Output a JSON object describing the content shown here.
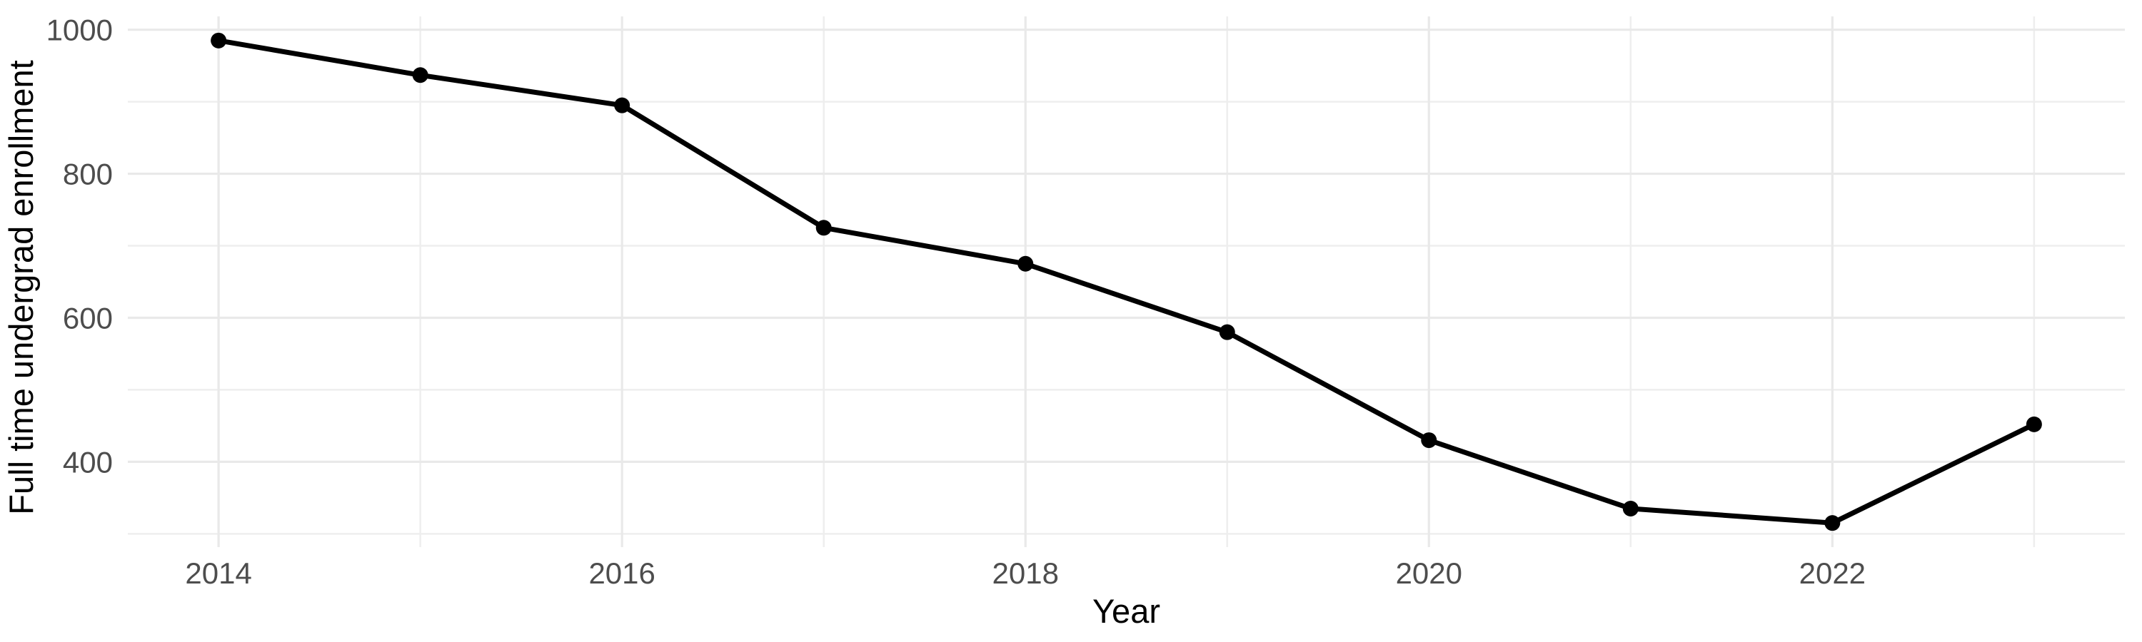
{
  "chart_data": {
    "type": "line",
    "title": "",
    "xlabel": "Year",
    "ylabel": "Full time undergrad enrollment",
    "x": [
      2014,
      2015,
      2016,
      2017,
      2018,
      2019,
      2020,
      2021,
      2022,
      2023
    ],
    "y": [
      985,
      937,
      895,
      725,
      675,
      580,
      430,
      335,
      315,
      452
    ],
    "x_major_ticks": [
      2014,
      2016,
      2018,
      2020,
      2022
    ],
    "x_minor_gridlines": [
      2015,
      2017,
      2019,
      2021,
      2023
    ],
    "y_major_ticks": [
      400,
      600,
      800,
      1000
    ],
    "y_minor_gridlines": [
      300,
      500,
      700,
      900
    ],
    "xlim": [
      2013.55,
      2023.45
    ],
    "ylim": [
      281.5,
      1018.5
    ],
    "grid": true,
    "legend": false,
    "markers": true,
    "colors": {
      "line": "#000000",
      "point": "#000000",
      "grid_major": "#e9e9e9",
      "grid_minor": "#eeeeee",
      "tick_label": "#4d4d4d",
      "axis_title": "#000000",
      "background": "#ffffff"
    }
  }
}
